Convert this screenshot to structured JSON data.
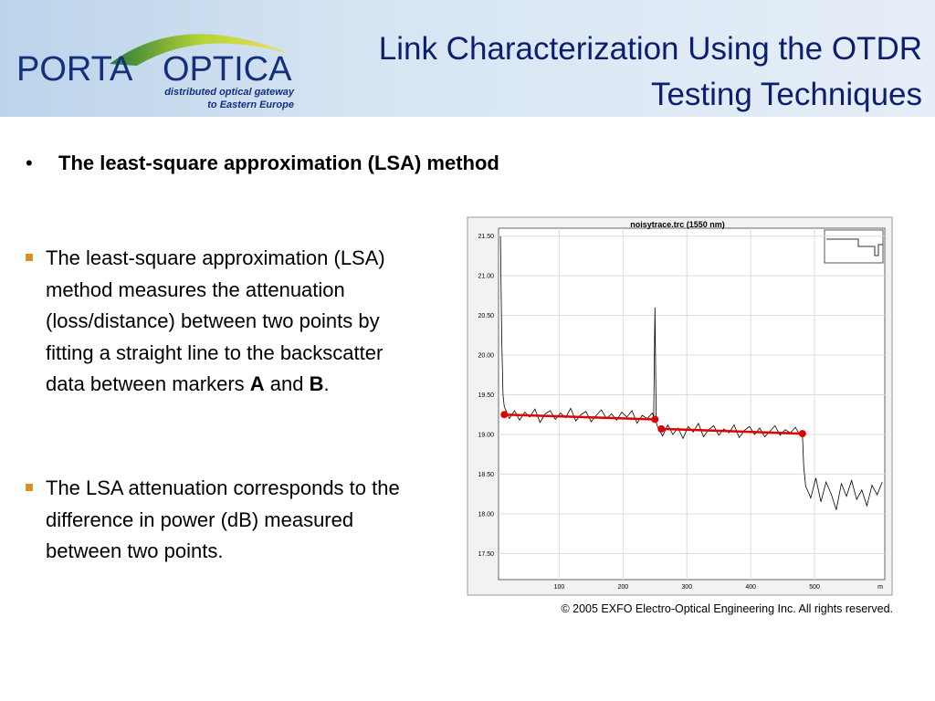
{
  "header": {
    "logo": {
      "name_left": "PORTA",
      "name_right": "OPTICA",
      "tagline_1": "distributed optical gateway",
      "tagline_2": "to Eastern Europe"
    },
    "title_1": "Link Characterization Using the OTDR",
    "title_2": "Testing Techniques"
  },
  "heading": "The least-square approximation (LSA) method",
  "bullets": [
    [
      "The least-square approximation (LSA) method measures the attenuation (loss/distance) between two points by fitting a straight line to the backscatter data between markers ",
      "A",
      " and ",
      "B",
      "."
    ],
    [
      "The LSA attenuation corresponds to the difference in power (dB) measured between two points."
    ]
  ],
  "chart_data": {
    "type": "line",
    "title": "noisytrace.trc (1550 nm)",
    "xlabel": "m",
    "xlim": [
      5,
      610
    ],
    "xticks": [
      100,
      200,
      300,
      400,
      500
    ],
    "ylim": [
      17.17,
      21.6
    ],
    "yticks": [
      {
        "value": 21.5,
        "label": "21.50"
      },
      {
        "value": 21,
        "label": "21.00"
      },
      {
        "value": 20.5,
        "label": "20.50"
      },
      {
        "value": 20,
        "label": "20.00"
      },
      {
        "value": 19.5,
        "label": "19.50"
      },
      {
        "value": 19,
        "label": "19.00"
      },
      {
        "value": 18.5,
        "label": "18.50"
      },
      {
        "value": 18,
        "label": "18.00"
      },
      {
        "value": 17.5,
        "label": "17.50"
      }
    ],
    "grid": true,
    "series": [
      {
        "color": "#000000",
        "x": [
          8,
          10,
          12,
          14,
          22,
          30,
          38,
          46,
          54,
          62,
          70,
          78,
          86,
          94,
          102,
          110,
          118,
          126,
          134,
          142,
          150,
          158,
          166,
          174,
          182,
          190,
          198,
          206,
          214,
          222,
          230,
          238,
          246,
          248,
          250,
          252,
          254,
          262,
          270,
          278,
          286,
          294,
          302,
          310,
          318,
          326,
          334,
          342,
          350,
          358,
          366,
          374,
          382,
          390,
          398,
          406,
          414,
          422,
          430,
          438,
          446,
          454,
          462,
          470,
          478,
          481,
          483,
          486,
          494,
          502,
          510,
          518,
          526,
          534,
          542,
          550,
          558,
          566,
          574,
          582,
          590,
          598,
          606
        ],
        "values": [
          21.5,
          20.2,
          19.5,
          19.35,
          19.2,
          19.3,
          19.18,
          19.28,
          19.22,
          19.32,
          19.15,
          19.26,
          19.3,
          19.19,
          19.27,
          19.21,
          19.33,
          19.17,
          19.25,
          19.29,
          19.16,
          19.24,
          19.31,
          19.2,
          19.26,
          19.18,
          19.28,
          19.22,
          19.3,
          19.14,
          19.24,
          19.2,
          19.27,
          19.22,
          20.6,
          19.15,
          19.1,
          18.98,
          19.12,
          19.0,
          19.08,
          18.95,
          19.1,
          19.03,
          19.14,
          18.97,
          19.06,
          19.11,
          18.99,
          19.07,
          19.02,
          19.12,
          18.96,
          19.05,
          19.1,
          19.0,
          19.08,
          18.97,
          19.04,
          19.11,
          18.99,
          19.06,
          19.02,
          19.09,
          18.98,
          19.0,
          18.6,
          18.35,
          18.2,
          18.45,
          18.15,
          18.4,
          18.25,
          18.05,
          18.38,
          18.22,
          18.42,
          18.18,
          18.3,
          18.1,
          18.36,
          18.24,
          18.4
        ]
      },
      {
        "color": "#e00000",
        "x": [
          14,
          250
        ],
        "values": [
          19.25,
          19.19
        ]
      },
      {
        "color": "#e00000",
        "x": [
          260,
          481
        ],
        "values": [
          19.07,
          19.01
        ]
      }
    ]
  },
  "copyright": "© 2005 EXFO Electro-Optical Engineering Inc. All rights reserved."
}
